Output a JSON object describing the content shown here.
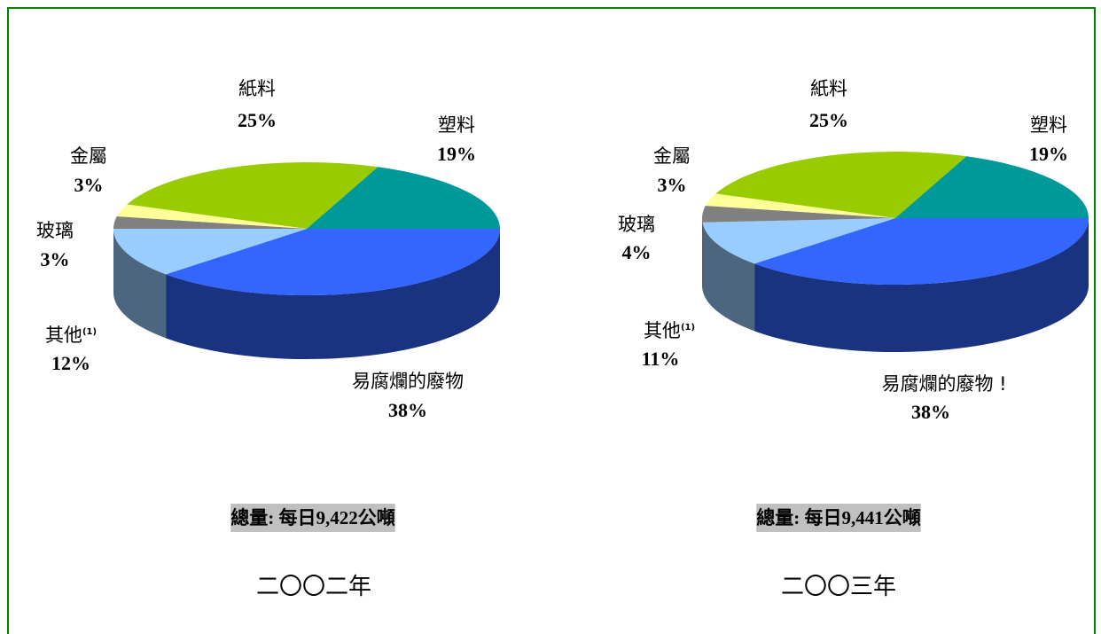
{
  "chart_data": [
    {
      "type": "pie3d",
      "categories": [
        "易腐爛的廢物",
        "其他",
        "玻璃",
        "金屬",
        "紙料",
        "塑料"
      ],
      "label_superscripts": [
        null,
        "(1)",
        null,
        null,
        null,
        null
      ],
      "values": [
        38,
        12,
        3,
        3,
        25,
        19
      ],
      "value_labels": [
        "38%",
        "12%",
        "3%",
        "3%",
        "25%",
        "19%"
      ],
      "colors": [
        "#3366ff",
        "#99ccff",
        "#808080",
        "#ffff99",
        "#99cc00",
        "#009999"
      ],
      "side_colors": [
        "#1a3380",
        "#4d6680",
        "#404040",
        "#80804d",
        "#4d6600",
        "#004d4d"
      ],
      "total_label": "總量: 每日9,422公噸",
      "year": "二〇〇二年"
    },
    {
      "type": "pie3d",
      "categories": [
        "易腐爛的廢物 !",
        "其他",
        "玻璃",
        "金屬",
        "紙料",
        "塑料"
      ],
      "label_superscripts": [
        null,
        "(1)",
        null,
        null,
        null,
        null
      ],
      "values": [
        38,
        11,
        4,
        3,
        25,
        19
      ],
      "value_labels": [
        "38%",
        "11%",
        "4%",
        "3%",
        "25%",
        "19%"
      ],
      "colors": [
        "#3366ff",
        "#99ccff",
        "#808080",
        "#ffff99",
        "#99cc00",
        "#009999"
      ],
      "side_colors": [
        "#1a3380",
        "#4d6680",
        "#404040",
        "#80804d",
        "#4d6600",
        "#004d4d"
      ],
      "total_label": "總量: 每日9,441公噸",
      "year": "二〇〇三年"
    }
  ]
}
